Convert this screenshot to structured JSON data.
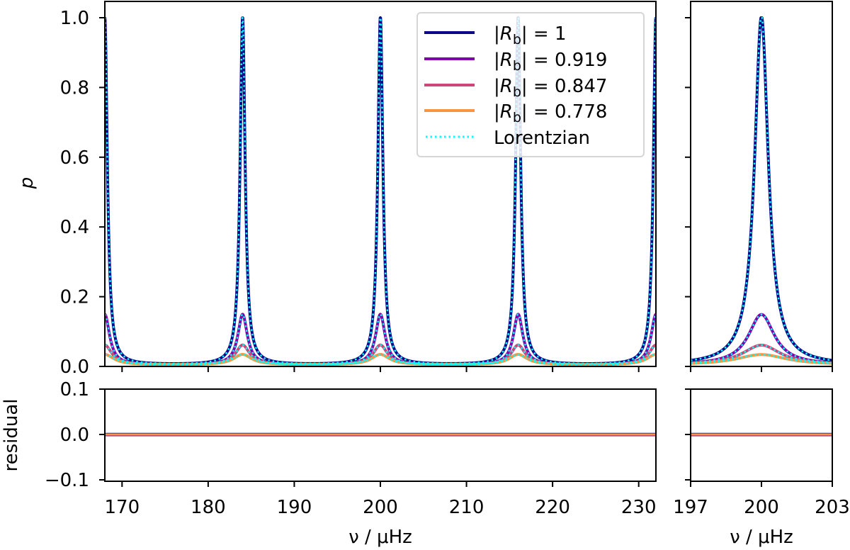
{
  "chart_data": [
    {
      "panel": "main-top",
      "type": "line",
      "title": "",
      "xlabel": "",
      "ylabel": "p",
      "xlim": [
        168,
        232
      ],
      "ylim": [
        0.0,
        1.0
      ],
      "xticks": [
        170,
        180,
        190,
        200,
        210,
        220,
        230
      ],
      "yticks": [
        "0.0",
        "0.2",
        "0.4",
        "0.6",
        "0.8",
        "1.0"
      ],
      "peak_centers": [
        168,
        184,
        200,
        216,
        232
      ],
      "linewidth_uhz": 0.35,
      "series": [
        {
          "name": "|R_b| = 1",
          "legend": "|Rb| = 1",
          "color": "#0d0887",
          "peak_height": 1.0,
          "style": "solid"
        },
        {
          "name": "|R_b| = 0.919",
          "legend": "|Rb| = 0.919",
          "color": "#7e03a8",
          "peak_height": 0.145,
          "style": "solid"
        },
        {
          "name": "|R_b| = 0.847",
          "legend": "|Rb| = 0.847",
          "color": "#cc4778",
          "peak_height": 0.057,
          "style": "solid"
        },
        {
          "name": "|R_b| = 0.778",
          "legend": "|Rb| = 0.778",
          "color": "#f89540",
          "peak_height": 0.03,
          "style": "solid"
        },
        {
          "name": "Lorentzian",
          "legend": "Lorentzian",
          "color": "#00ffff",
          "style": "dotted"
        }
      ],
      "legend_position": "upper right"
    },
    {
      "panel": "zoom-top",
      "type": "line",
      "xlim": [
        197,
        203
      ],
      "ylim": [
        0.0,
        1.0
      ],
      "xticks": [
        197,
        200,
        203
      ],
      "peak_center": 200,
      "series_peak_heights": [
        1.0,
        0.145,
        0.057,
        0.03
      ]
    },
    {
      "panel": "main-residual",
      "type": "line",
      "xlabel": "ν / μHz",
      "ylabel": "residual",
      "xlim": [
        168,
        232
      ],
      "ylim": [
        -0.1,
        0.1
      ],
      "xticks": [
        "170",
        "180",
        "190",
        "200",
        "210",
        "220",
        "230"
      ],
      "yticks": [
        "−0.1",
        "0.0",
        "0.1"
      ],
      "values": "≈0 for all series"
    },
    {
      "panel": "zoom-residual",
      "type": "line",
      "xlabel": "ν / μHz",
      "xlim": [
        197,
        203
      ],
      "ylim": [
        -0.1,
        0.1
      ],
      "xticks": [
        "197",
        "200",
        "203"
      ],
      "values": "≈0 for all series"
    }
  ],
  "labels": {
    "ylabel_top": "p",
    "ylabel_bottom": "residual",
    "xlabel": "ν / μHz",
    "legend": [
      "|R",
      "b",
      "| = 1",
      "| = 0.919",
      "| = 0.847",
      "| = 0.778",
      "Lorentzian"
    ]
  }
}
